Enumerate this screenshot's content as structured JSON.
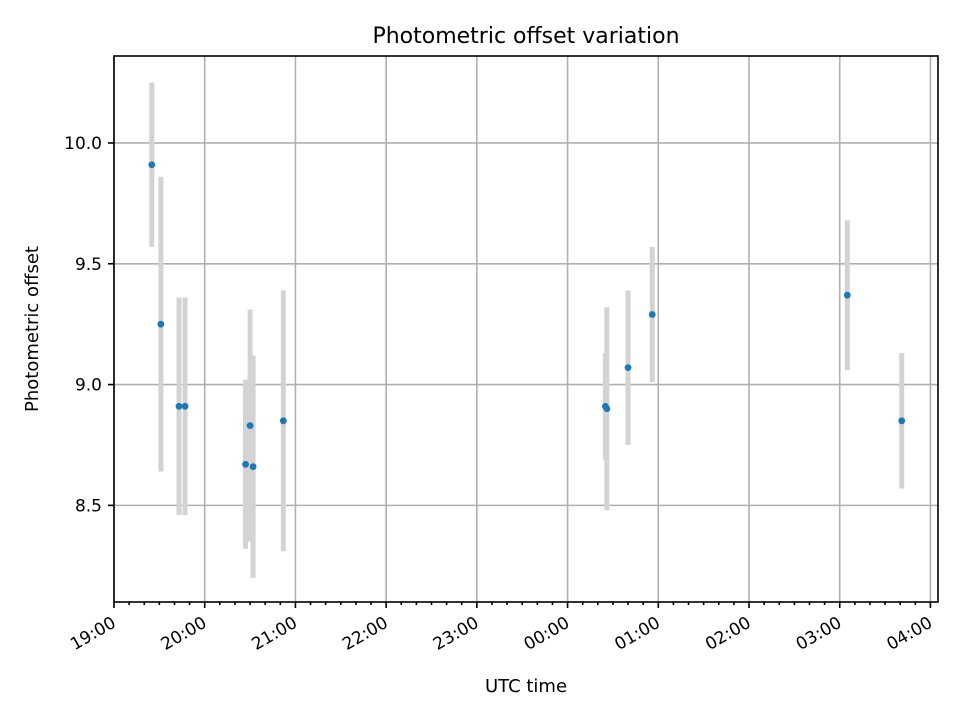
{
  "chart_data": {
    "type": "scatter",
    "title": "Photometric offset variation",
    "xlabel": "UTC time",
    "ylabel": "Photometric offset",
    "x_axis": {
      "kind": "time",
      "start": "2000-01-01T19:00:00",
      "end": "2000-01-02T04:05:00",
      "min_label": "19:00"
    },
    "xlim": [
      "19:00",
      "04:05"
    ],
    "ylim": [
      8.1,
      10.36
    ],
    "xticks": [
      "19:00",
      "20:00",
      "21:00",
      "22:00",
      "23:00",
      "00:00",
      "01:00",
      "02:00",
      "03:00",
      "04:00"
    ],
    "yticks": [
      8.5,
      9.0,
      9.5,
      10.0
    ],
    "grid": true,
    "colors": {
      "point": "#1f77b4",
      "errorbar": "#d3d3d3"
    },
    "series": [
      {
        "x": [
          "19:25",
          "19:31",
          "19:43",
          "19:47",
          "20:27",
          "20:30",
          "20:32",
          "20:52",
          "00:25",
          "00:26",
          "00:40",
          "00:56",
          "03:05",
          "03:41"
        ],
        "y": [
          9.91,
          9.25,
          8.91,
          8.91,
          8.67,
          8.83,
          8.66,
          8.85,
          8.91,
          8.9,
          9.07,
          9.29,
          9.37,
          8.85
        ],
        "yerr": [
          0.34,
          0.61,
          0.45,
          0.45,
          0.35,
          0.48,
          0.46,
          0.54,
          0.22,
          0.42,
          0.32,
          0.28,
          0.31,
          0.28
        ]
      }
    ]
  }
}
